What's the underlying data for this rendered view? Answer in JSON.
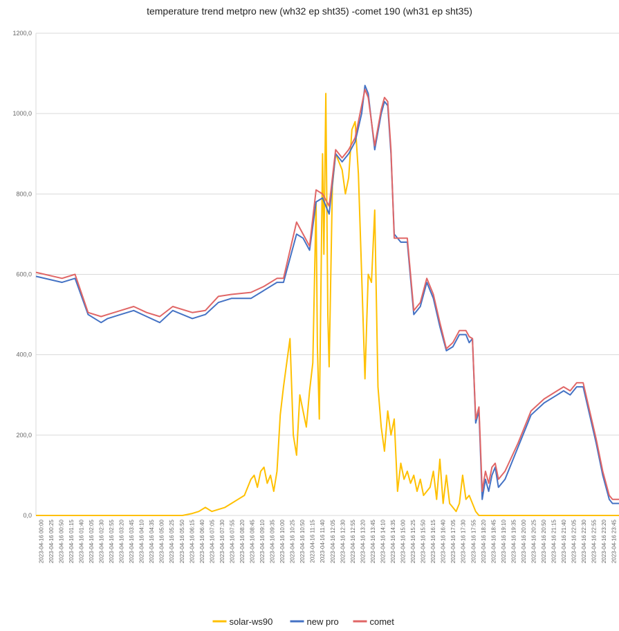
{
  "chart_data": {
    "type": "line",
    "title": "temperature trend metpro new (wh32 ep sht35) -comet 190 (wh31 ep sht35)",
    "xlabel": "",
    "ylabel": "",
    "ylim": [
      0,
      1200
    ],
    "y_ticks": [
      "0,0",
      "200,0",
      "400,0",
      "600,0",
      "800,0",
      "1000,0",
      "1200,0"
    ],
    "x_ticks": [
      "2023-04-16 00:00",
      "2023-04-16 00:25",
      "2023-04-16 00:50",
      "2023-04-16 01:15",
      "2023-04-16 01:40",
      "2023-04-16 02:05",
      "2023-04-16 02:30",
      "2023-04-16 02:55",
      "2023-04-16 03:20",
      "2023-04-16 03:45",
      "2023-04-16 04:10",
      "2023-04-16 04:35",
      "2023-04-16 05:00",
      "2023-04-16 05:25",
      "2023-04-16 05:50",
      "2023-04-16 06:15",
      "2023-04-16 06:40",
      "2023-04-16 07:05",
      "2023-04-16 07:30",
      "2023-04-16 07:55",
      "2023-04-16 08:20",
      "2023-04-16 08:45",
      "2023-04-16 09:10",
      "2023-04-16 09:35",
      "2023-04-16 10:00",
      "2023-04-16 10:25",
      "2023-04-16 10:50",
      "2023-04-16 11:15",
      "2023-04-16 11:40",
      "2023-04-16 12:05",
      "2023-04-16 12:30",
      "2023-04-16 12:55",
      "2023-04-16 13:20",
      "2023-04-16 13:45",
      "2023-04-16 14:10",
      "2023-04-16 14:35",
      "2023-04-16 15:00",
      "2023-04-16 15:25",
      "2023-04-16 15:50",
      "2023-04-16 16:15",
      "2023-04-16 16:40",
      "2023-04-16 17:05",
      "2023-04-16 17:30",
      "2023-04-16 17:55",
      "2023-04-16 18:20",
      "2023-04-16 18:45",
      "2023-04-16 19:10",
      "2023-04-16 19:35",
      "2023-04-16 20:00",
      "2023-04-16 20:25",
      "2023-04-16 20:50",
      "2023-04-16 21:15",
      "2023-04-16 21:40",
      "2023-04-16 22:05",
      "2023-04-16 22:30",
      "2023-04-16 22:55",
      "2023-04-16 23:20",
      "2023-04-16 23:45"
    ],
    "grid": true,
    "legend_position": "bottom",
    "series": [
      {
        "name": "solar-ws90",
        "color": "#ffc000",
        "x": [
          0,
          225,
          240,
          250,
          260,
          270,
          280,
          290,
          300,
          310,
          320,
          330,
          335,
          340,
          345,
          350,
          355,
          360,
          365,
          370,
          375,
          380,
          385,
          390,
          395,
          400,
          405,
          410,
          415,
          420,
          425,
          430,
          432,
          435,
          440,
          442,
          445,
          448,
          450,
          455,
          460,
          465,
          470,
          475,
          480,
          485,
          490,
          495,
          500,
          505,
          510,
          515,
          520,
          525,
          530,
          535,
          540,
          545,
          550,
          555,
          560,
          565,
          570,
          575,
          580,
          585,
          590,
          595,
          600,
          605,
          610,
          615,
          620,
          625,
          630,
          635,
          640,
          645,
          650,
          655,
          660,
          665,
          670,
          675,
          680,
          685,
          690,
          700,
          710,
          720,
          800,
          895
        ],
        "y": [
          0,
          0,
          5,
          10,
          20,
          10,
          15,
          20,
          30,
          40,
          50,
          90,
          100,
          70,
          110,
          120,
          80,
          100,
          60,
          110,
          250,
          320,
          380,
          440,
          200,
          150,
          300,
          260,
          220,
          310,
          380,
          780,
          420,
          240,
          900,
          650,
          1050,
          500,
          370,
          820,
          900,
          880,
          860,
          800,
          840,
          960,
          980,
          850,
          600,
          340,
          600,
          580,
          760,
          320,
          220,
          160,
          260,
          200,
          240,
          60,
          130,
          90,
          110,
          80,
          100,
          60,
          90,
          50,
          60,
          70,
          110,
          40,
          140,
          30,
          100,
          30,
          20,
          10,
          30,
          100,
          40,
          50,
          30,
          10,
          0,
          0,
          0,
          0,
          0,
          0,
          0,
          0
        ]
      },
      {
        "name": "new pro",
        "color": "#4472c4",
        "x": [
          0,
          40,
          60,
          80,
          100,
          110,
          130,
          150,
          170,
          190,
          210,
          240,
          260,
          280,
          300,
          330,
          350,
          370,
          380,
          400,
          410,
          420,
          430,
          440,
          450,
          460,
          470,
          480,
          490,
          500,
          505,
          510,
          520,
          530,
          535,
          540,
          545,
          550,
          560,
          565,
          570,
          580,
          590,
          600,
          610,
          620,
          630,
          640,
          650,
          660,
          665,
          670,
          675,
          680,
          685,
          690,
          695,
          700,
          705,
          710,
          715,
          720,
          740,
          760,
          780,
          800,
          810,
          820,
          830,
          840,
          850,
          860,
          870,
          880,
          885,
          895
        ],
        "y": [
          595,
          580,
          590,
          500,
          480,
          490,
          500,
          510,
          495,
          480,
          510,
          490,
          500,
          530,
          540,
          540,
          560,
          580,
          580,
          700,
          690,
          660,
          780,
          790,
          750,
          900,
          880,
          900,
          930,
          1000,
          1070,
          1050,
          910,
          1000,
          1030,
          1020,
          900,
          700,
          680,
          680,
          680,
          500,
          520,
          580,
          540,
          470,
          410,
          420,
          450,
          450,
          430,
          440,
          230,
          260,
          40,
          90,
          60,
          100,
          120,
          70,
          80,
          90,
          170,
          250,
          280,
          300,
          310,
          300,
          320,
          320,
          250,
          180,
          100,
          40,
          30,
          30
        ]
      },
      {
        "name": "comet",
        "color": "#e06666",
        "x": [
          0,
          40,
          60,
          80,
          100,
          110,
          130,
          150,
          170,
          190,
          210,
          240,
          260,
          280,
          300,
          330,
          350,
          370,
          380,
          400,
          410,
          420,
          430,
          440,
          450,
          460,
          470,
          480,
          490,
          500,
          505,
          510,
          520,
          530,
          535,
          540,
          545,
          550,
          560,
          565,
          570,
          580,
          590,
          600,
          610,
          620,
          630,
          640,
          650,
          660,
          665,
          670,
          675,
          680,
          685,
          690,
          695,
          700,
          705,
          710,
          715,
          720,
          740,
          760,
          780,
          800,
          810,
          820,
          830,
          840,
          850,
          860,
          870,
          880,
          885,
          895
        ],
        "y": [
          605,
          590,
          600,
          505,
          495,
          500,
          510,
          520,
          505,
          495,
          520,
          505,
          510,
          545,
          550,
          555,
          570,
          590,
          590,
          730,
          700,
          670,
          810,
          800,
          770,
          910,
          890,
          910,
          940,
          1020,
          1060,
          1040,
          920,
          1010,
          1040,
          1030,
          910,
          690,
          690,
          690,
          690,
          510,
          530,
          590,
          550,
          480,
          415,
          430,
          460,
          460,
          445,
          440,
          240,
          270,
          60,
          110,
          80,
          120,
          130,
          90,
          100,
          110,
          180,
          260,
          290,
          310,
          320,
          310,
          330,
          330,
          260,
          190,
          110,
          50,
          40,
          40
        ]
      }
    ]
  }
}
